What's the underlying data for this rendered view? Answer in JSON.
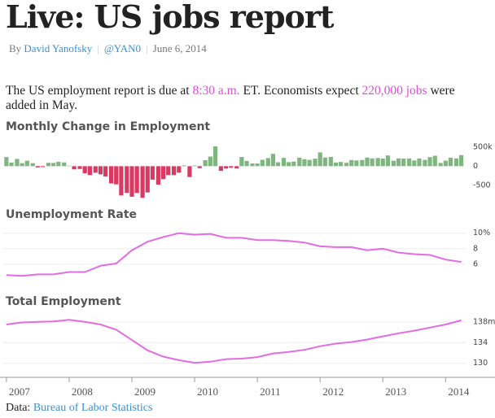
{
  "header": {
    "title": "Live: US jobs report",
    "by": "By",
    "author": "David Yanofsky",
    "handle": "@YAN0",
    "date": "June 6, 2014"
  },
  "intro": {
    "before": "The US employment report is due at ",
    "time": "8:30 a.m.",
    "middle": " ET. Economists expect ",
    "forecast": "220,000 jobs",
    "after": " were added in May."
  },
  "source": {
    "label": "Data: ",
    "name": "Bureau of Labor Statistics"
  },
  "chart_data": [
    {
      "type": "bar",
      "title": "Monthly Change in Employment",
      "positive_color": "#7fb57f",
      "negative_color": "#d83a62",
      "x": [
        2007,
        2007.08,
        2007.17,
        2007.25,
        2007.33,
        2007.42,
        2007.5,
        2007.58,
        2007.67,
        2007.75,
        2007.83,
        2007.92,
        2008,
        2008.08,
        2008.17,
        2008.25,
        2008.33,
        2008.42,
        2008.5,
        2008.58,
        2008.67,
        2008.75,
        2008.83,
        2008.92,
        2009,
        2009.08,
        2009.17,
        2009.25,
        2009.33,
        2009.42,
        2009.5,
        2009.58,
        2009.67,
        2009.75,
        2009.83,
        2009.92,
        2010,
        2010.08,
        2010.17,
        2010.25,
        2010.33,
        2010.42,
        2010.5,
        2010.58,
        2010.67,
        2010.75,
        2010.83,
        2010.92,
        2011,
        2011.08,
        2011.17,
        2011.25,
        2011.33,
        2011.42,
        2011.5,
        2011.58,
        2011.67,
        2011.75,
        2011.83,
        2011.92,
        2012,
        2012.08,
        2012.17,
        2012.25,
        2012.33,
        2012.42,
        2012.5,
        2012.58,
        2012.67,
        2012.75,
        2012.83,
        2012.92,
        2013,
        2013.08,
        2013.17,
        2013.25,
        2013.33,
        2013.42,
        2013.5,
        2013.58,
        2013.67,
        2013.75,
        2013.83,
        2013.92,
        2014,
        2014.08,
        2014.17,
        2014.25
      ],
      "values": [
        238,
        93,
        190,
        79,
        143,
        78,
        -33,
        -24,
        88,
        84,
        114,
        98,
        13,
        -83,
        -72,
        -185,
        -233,
        -170,
        -213,
        -267,
        -450,
        -474,
        -765,
        -697,
        -798,
        -701,
        -826,
        -686,
        -351,
        -482,
        -339,
        -231,
        -233,
        -170,
        22,
        -284,
        18,
        -50,
        156,
        251,
        516,
        -122,
        -61,
        -42,
        -57,
        241,
        137,
        71,
        70,
        168,
        212,
        322,
        102,
        217,
        106,
        122,
        221,
        183,
        164,
        196,
        360,
        226,
        243,
        96,
        110,
        88,
        160,
        150,
        161,
        225,
        203,
        214,
        197,
        280,
        141,
        203,
        199,
        201,
        149,
        202,
        164,
        237,
        274,
        84,
        144,
        222,
        203,
        288
      ],
      "xlim": [
        2006.95,
        2014.32
      ],
      "ylim": [
        -800,
        560
      ],
      "yticks": [
        {
          "value": 500,
          "label": "500k"
        },
        0,
        -500
      ]
    },
    {
      "type": "line",
      "title": "Unemployment Rate",
      "color": "#e36ce3",
      "x": [
        2007,
        2007.25,
        2007.5,
        2007.75,
        2008,
        2008.25,
        2008.5,
        2008.75,
        2009,
        2009.25,
        2009.5,
        2009.75,
        2010,
        2010.25,
        2010.5,
        2010.75,
        2011,
        2011.25,
        2011.5,
        2011.75,
        2012,
        2012.25,
        2012.5,
        2012.75,
        2013,
        2013.25,
        2013.5,
        2013.75,
        2014,
        2014.25
      ],
      "values": [
        4.6,
        4.5,
        4.7,
        4.7,
        5.0,
        5.0,
        5.8,
        6.1,
        7.8,
        8.9,
        9.5,
        10.0,
        9.8,
        9.9,
        9.4,
        9.4,
        9.1,
        9.1,
        9.0,
        8.8,
        8.3,
        8.2,
        8.2,
        7.8,
        8.0,
        7.5,
        7.3,
        7.2,
        6.6,
        6.3
      ],
      "xlim": [
        2006.95,
        2014.32
      ],
      "ylim": [
        3.9,
        10.7
      ],
      "yticks": [
        {
          "value": 10,
          "label": "10%"
        },
        8,
        6
      ],
      "grid": true
    },
    {
      "type": "line",
      "title": "Total Employment",
      "color": "#e36ce3",
      "x": [
        2007,
        2007.25,
        2007.5,
        2007.75,
        2008,
        2008.25,
        2008.5,
        2008.75,
        2009,
        2009.25,
        2009.5,
        2009.75,
        2010,
        2010.25,
        2010.5,
        2010.75,
        2011,
        2011.25,
        2011.5,
        2011.75,
        2012,
        2012.25,
        2012.5,
        2012.75,
        2013,
        2013.25,
        2013.5,
        2013.75,
        2014,
        2014.25
      ],
      "values": [
        137.5,
        137.9,
        138.0,
        138.1,
        138.4,
        138.0,
        137.5,
        136.5,
        134.5,
        132.5,
        131.3,
        130.6,
        130.1,
        130.3,
        130.8,
        130.9,
        131.2,
        131.9,
        132.2,
        132.6,
        133.3,
        133.8,
        134.1,
        134.6,
        135.2,
        135.8,
        136.3,
        136.9,
        137.5,
        138.3
      ],
      "xlim": [
        2006.95,
        2014.32
      ],
      "ylim": [
        128.7,
        139.7
      ],
      "yticks": [
        {
          "value": 138,
          "label": "138m"
        },
        134,
        130
      ],
      "grid": true,
      "xticks": [
        2007,
        2008,
        2009,
        2010,
        2011,
        2012,
        2013,
        2014
      ]
    }
  ]
}
